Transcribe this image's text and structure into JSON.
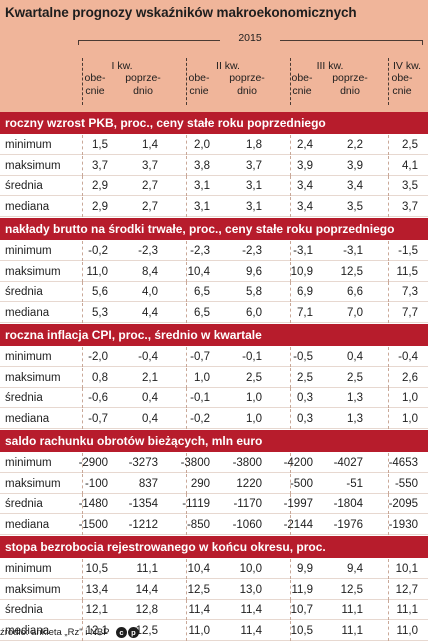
{
  "title": "Kwartalne prognozy wskaźników makroekonomicznych",
  "year": "2015",
  "quarters": [
    {
      "label": "I kw.",
      "sub_now": "obe-\ncnie",
      "sub_prev": "poprze-\ndnio"
    },
    {
      "label": "II kw.",
      "sub_now": "obe-\ncnie",
      "sub_prev": "poprze-\ndnio"
    },
    {
      "label": "III kw.",
      "sub_now": "obe-\ncnie",
      "sub_prev": "poprze-\ndnio"
    },
    {
      "label": "IV kw.",
      "sub_now": "obe-\ncnie"
    }
  ],
  "sections": [
    {
      "title": "roczny wzrost PKB, proc., ceny stałe roku poprzedniego",
      "rows": [
        {
          "label": "minimum",
          "values": [
            "1,5",
            "1,4",
            "2,0",
            "1,8",
            "2,4",
            "2,2",
            "2,5"
          ]
        },
        {
          "label": "maksimum",
          "values": [
            "3,7",
            "3,7",
            "3,8",
            "3,7",
            "3,9",
            "3,9",
            "4,1"
          ]
        },
        {
          "label": "średnia",
          "values": [
            "2,9",
            "2,7",
            "3,1",
            "3,1",
            "3,4",
            "3,4",
            "3,5"
          ]
        },
        {
          "label": "mediana",
          "values": [
            "2,9",
            "2,7",
            "3,1",
            "3,1",
            "3,4",
            "3,5",
            "3,7"
          ]
        }
      ]
    },
    {
      "title": "nakłady brutto na środki trwałe, proc., ceny stałe roku poprzedniego",
      "rows": [
        {
          "label": "minimum",
          "values": [
            "-0,2",
            "-2,3",
            "-2,3",
            "-2,3",
            "-3,1",
            "-3,1",
            "-1,5"
          ]
        },
        {
          "label": "maksimum",
          "values": [
            "11,0",
            "8,4",
            "10,4",
            "9,6",
            "10,9",
            "12,5",
            "11,5"
          ]
        },
        {
          "label": "średnia",
          "values": [
            "5,6",
            "4,0",
            "6,5",
            "5,8",
            "6,9",
            "6,6",
            "7,3"
          ]
        },
        {
          "label": "mediana",
          "values": [
            "5,3",
            "4,4",
            "6,5",
            "6,0",
            "7,1",
            "7,0",
            "7,7"
          ]
        }
      ]
    },
    {
      "title": "roczna inflacja CPI, proc., średnio w kwartale",
      "rows": [
        {
          "label": "minimum",
          "values": [
            "-2,0",
            "-0,4",
            "-0,7",
            "-0,1",
            "-0,5",
            "0,4",
            "-0,4"
          ]
        },
        {
          "label": "maksimum",
          "values": [
            "0,8",
            "2,1",
            "1,0",
            "2,5",
            "2,5",
            "2,5",
            "2,6"
          ]
        },
        {
          "label": "średnia",
          "values": [
            "-0,6",
            "0,4",
            "-0,1",
            "1,0",
            "0,3",
            "1,3",
            "1,0"
          ]
        },
        {
          "label": "mediana",
          "values": [
            "-0,7",
            "0,4",
            "-0,2",
            "1,0",
            "0,3",
            "1,3",
            "1,0"
          ]
        }
      ]
    },
    {
      "title": "saldo rachunku obrotów bieżących, mln euro",
      "rows": [
        {
          "label": "minimum",
          "values": [
            "-2900",
            "-3273",
            "-3800",
            "-3800",
            "-4200",
            "-4027",
            "-4653"
          ]
        },
        {
          "label": "maksimum",
          "values": [
            "-100",
            "837",
            "290",
            "1220",
            "-500",
            "-51",
            "-550"
          ]
        },
        {
          "label": "średnia",
          "values": [
            "-1480",
            "-1354",
            "-1119",
            "-1170",
            "-1997",
            "-1804",
            "-2095"
          ]
        },
        {
          "label": "mediana",
          "values": [
            "-1500",
            "-1212",
            "-850",
            "-1060",
            "-2144",
            "-1976",
            "-1930"
          ]
        }
      ]
    },
    {
      "title": "stopa bezrobocia rejestrowanego w końcu okresu, proc.",
      "rows": [
        {
          "label": "minimum",
          "values": [
            "10,5",
            "11,1",
            "10,4",
            "10,0",
            "9,9",
            "9,4",
            "10,1"
          ]
        },
        {
          "label": "maksimum",
          "values": [
            "13,4",
            "14,4",
            "12,5",
            "13,0",
            "11,9",
            "12,5",
            "12,7"
          ]
        },
        {
          "label": "średnia",
          "values": [
            "12,1",
            "12,8",
            "11,4",
            "11,4",
            "10,7",
            "11,1",
            "11,1"
          ]
        },
        {
          "label": "mediana",
          "values": [
            "12,1",
            "12,5",
            "11,0",
            "11,4",
            "10,5",
            "11,1",
            "11,0"
          ]
        }
      ]
    }
  ],
  "source": "źródło: ankieta „Rz\" i NBP",
  "logo_text": "cp"
}
